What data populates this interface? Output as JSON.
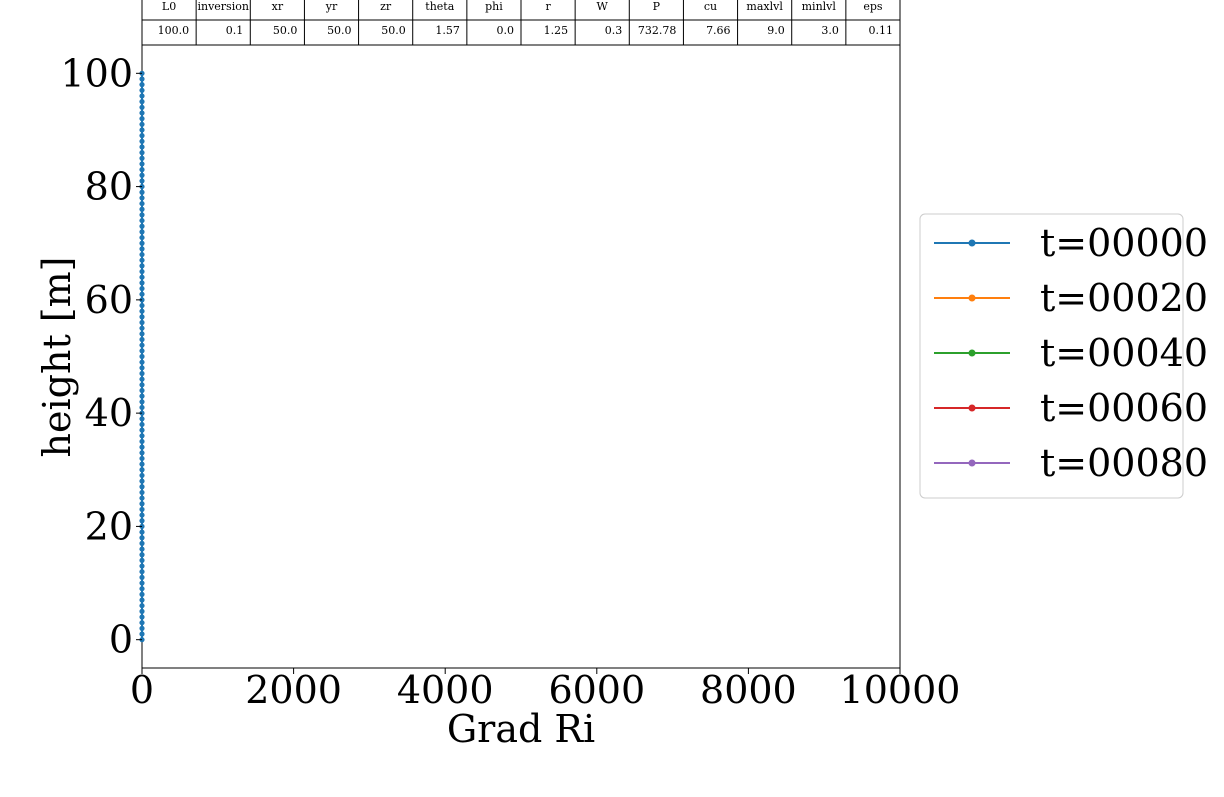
{
  "chart_data": {
    "type": "line",
    "xlabel": "Grad Ri",
    "ylabel": "height [m]",
    "xlim": [
      0,
      10000
    ],
    "ylim": [
      -5,
      105
    ],
    "xticks": [
      0,
      2000,
      4000,
      6000,
      8000,
      10000
    ],
    "yticks": [
      0,
      20,
      40,
      60,
      80,
      100
    ],
    "xtick_labels": [
      "0",
      "2000",
      "4000",
      "6000",
      "8000",
      "10000"
    ],
    "ytick_labels": [
      "0",
      "20",
      "40",
      "60",
      "80",
      "100"
    ],
    "grid": false,
    "legend_position": "right",
    "series": [
      {
        "name": "t=00000",
        "color": "#1f77b4",
        "x_value": 0,
        "y_start": 0,
        "y_end": 100,
        "n_points": 101
      },
      {
        "name": "t=00020",
        "color": "#ff7f0e",
        "x_value": 0,
        "y_start": 0,
        "y_end": 100,
        "n_points": 0
      },
      {
        "name": "t=00040",
        "color": "#2ca02c",
        "x_value": 0,
        "y_start": 0,
        "y_end": 100,
        "n_points": 0
      },
      {
        "name": "t=00060",
        "color": "#d62728",
        "x_value": 0,
        "y_start": 0,
        "y_end": 100,
        "n_points": 0
      },
      {
        "name": "t=00080",
        "color": "#9467bd",
        "x_value": 0,
        "y_start": 0,
        "y_end": 100,
        "n_points": 0
      }
    ],
    "parameter_table": {
      "headers": [
        "L0",
        "inversion",
        "xr",
        "yr",
        "zr",
        "theta",
        "phi",
        "r",
        "W",
        "P",
        "cu",
        "maxlvl",
        "minlvl",
        "eps"
      ],
      "values": [
        "100.0",
        "0.1",
        "50.0",
        "50.0",
        "50.0",
        "1.57",
        "0.0",
        "1.25",
        "0.3",
        "732.78",
        "7.66",
        "9.0",
        "3.0",
        "0.11"
      ]
    }
  }
}
